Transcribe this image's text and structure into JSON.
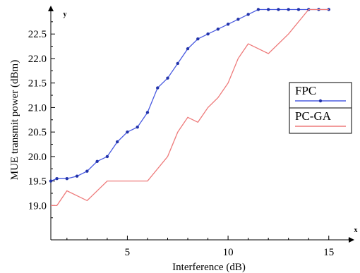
{
  "chart_data": {
    "type": "line",
    "xlabel": "Interference (dB)",
    "ylabel": "MUE transmit power (dBm)",
    "x_axis_letter": "x",
    "y_axis_letter": "y",
    "xlim": [
      1.2,
      16.2
    ],
    "ylim": [
      18.3,
      23.05
    ],
    "x_ticks": [
      5,
      10,
      15
    ],
    "y_ticks": [
      19.0,
      19.5,
      20.0,
      20.5,
      21.0,
      21.5,
      22.0,
      22.5
    ],
    "x_tick_labels": [
      "5",
      "10",
      "15"
    ],
    "y_tick_labels": [
      "19.0",
      "19.5",
      "20.0",
      "20.5",
      "21.0",
      "21.5",
      "22.0",
      "22.5"
    ],
    "legend_position": "right",
    "series": [
      {
        "name": "FPC",
        "color": "#4a5be0",
        "markers": true,
        "x": [
          1.2,
          1.5,
          2.0,
          2.5,
          3.0,
          3.5,
          4.0,
          4.5,
          5.0,
          5.5,
          6.0,
          6.5,
          7.0,
          7.5,
          8.0,
          8.5,
          9.0,
          9.5,
          10.0,
          10.5,
          11.0,
          11.5,
          12.0,
          12.5,
          13.0,
          13.5,
          14.0,
          14.5,
          15.0
        ],
        "y": [
          19.5,
          19.55,
          19.55,
          19.6,
          19.7,
          19.9,
          20.0,
          20.3,
          20.5,
          20.6,
          20.9,
          21.4,
          21.6,
          21.9,
          22.2,
          22.4,
          22.5,
          22.6,
          22.7,
          22.8,
          22.9,
          23.0,
          23.0,
          23.0,
          23.0,
          23.0,
          23.0,
          23.0,
          23.0
        ]
      },
      {
        "name": "PC-GA",
        "color": "#ee7a7a",
        "markers": false,
        "x": [
          1.2,
          1.5,
          2.0,
          3.0,
          4.0,
          5.0,
          6.0,
          7.0,
          7.5,
          8.0,
          8.5,
          9.0,
          9.5,
          10.0,
          10.5,
          11.0,
          12.0,
          13.0,
          14.0,
          15.0
        ],
        "y": [
          19.0,
          19.0,
          19.3,
          19.1,
          19.5,
          19.5,
          19.5,
          20.0,
          20.5,
          20.8,
          20.7,
          21.0,
          21.2,
          21.5,
          22.0,
          22.3,
          22.1,
          22.5,
          23.0,
          23.0
        ]
      }
    ]
  }
}
